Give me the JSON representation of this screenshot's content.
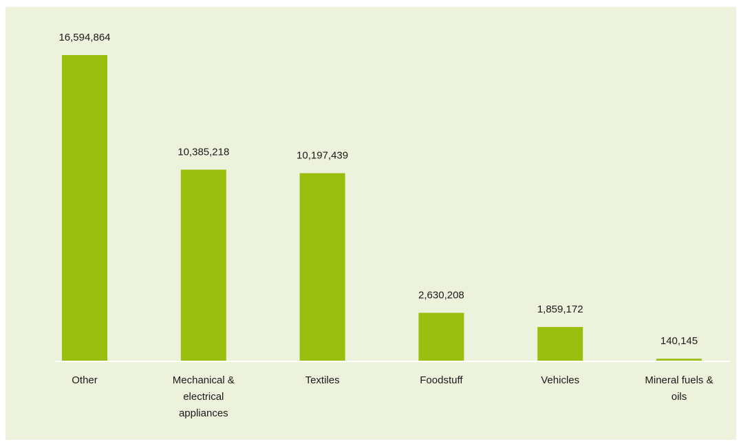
{
  "chart_data": {
    "type": "bar",
    "categories": [
      [
        "Other"
      ],
      [
        "Mechanical &",
        "electrical",
        "appliances"
      ],
      [
        "Textiles"
      ],
      [
        "Foodstuff"
      ],
      [
        "Vehicles"
      ],
      [
        "Mineral fuels &",
        "oils"
      ]
    ],
    "values": [
      16594864,
      10385218,
      10197439,
      2630208,
      1859172,
      140145
    ],
    "value_labels": [
      "16,594,864",
      "10,385,218",
      "10,197,439",
      "2,630,208",
      "1,859,172",
      "140,145"
    ],
    "title": "",
    "xlabel": "",
    "ylabel": "",
    "ylim": [
      0,
      16594864
    ],
    "grid": false,
    "legend": "none",
    "colors": {
      "bar": "#9abe0d",
      "background": "#edf2dc",
      "axis": "#ffffff",
      "text": "#1a1a1a"
    }
  }
}
